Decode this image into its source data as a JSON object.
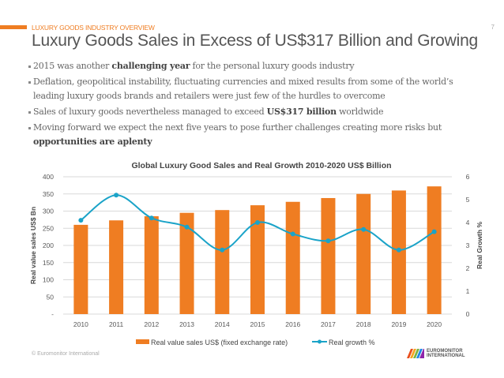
{
  "header": {
    "section": "LUXURY GOODS INDUSTRY OVERVIEW",
    "page_number": "7",
    "title": "Luxury Goods Sales in Excess of US$317 Billion and Growing"
  },
  "bullets": [
    [
      {
        "t": "2015 was another "
      },
      {
        "t": "challenging year",
        "b": true
      },
      {
        "t": " for the personal luxury goods industry"
      }
    ],
    [
      {
        "t": "Deflation, geopolitical instability, fluctuating currencies and mixed results from some of the world’s leading  luxury goods brands and retailers were just few of the hurdles to overcome"
      }
    ],
    [
      {
        "t": "Sales of luxury goods nevertheless managed to exceed "
      },
      {
        "t": "US$317 billion",
        "b": true
      },
      {
        "t": " worldwide"
      }
    ],
    [
      {
        "t": "Moving forward we expect the next five years to pose further challenges creating more risks but "
      },
      {
        "t": "opportunities are aplenty",
        "b": true
      }
    ]
  ],
  "chart_data": {
    "type": "bar+line",
    "title": "Global Luxury Good Sales and Real Growth 2010-2020 US$ Billion",
    "categories": [
      "2010",
      "2011",
      "2012",
      "2013",
      "2014",
      "2015",
      "2016",
      "2017",
      "2018",
      "2019",
      "2020"
    ],
    "series": [
      {
        "name": "Real value sales US$ (fixed exchange rate)",
        "type": "bar",
        "axis": "left",
        "color": "#ef7d22",
        "values": [
          260,
          273,
          285,
          295,
          303,
          317,
          327,
          338,
          350,
          360,
          372
        ]
      },
      {
        "name": "Real growth %",
        "type": "line",
        "smooth": true,
        "axis": "right",
        "color": "#1aa3c8",
        "values": [
          4.1,
          5.2,
          4.2,
          3.8,
          2.8,
          4.0,
          3.5,
          3.2,
          3.7,
          2.8,
          3.6
        ]
      }
    ],
    "ylabel": "Real value sales US$ Bn",
    "ylim": [
      0,
      400
    ],
    "yticks": [
      "-",
      "50",
      "100",
      "150",
      "200",
      "250",
      "300",
      "350",
      "400"
    ],
    "y2label": "Real Growth %",
    "y2lim": [
      0,
      6
    ],
    "y2ticks": [
      "0",
      "1",
      "2",
      "3",
      "4",
      "5",
      "6"
    ],
    "grid": true,
    "legend": "bottom"
  },
  "footer": {
    "copyright": "© Euromonitor International",
    "logo_line1": "EUROMONITOR",
    "logo_line2": "INTERNATIONAL"
  }
}
